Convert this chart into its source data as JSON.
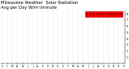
{
  "title": "Milwaukee Weather  Solar Radiation",
  "subtitle": "Avg per Day W/m²/minute",
  "title_fontsize": 3.8,
  "bg_color": "#ffffff",
  "line1_color": "#ff0000",
  "line2_color": "#000000",
  "yticks": [
    1,
    2,
    3,
    4,
    5,
    6,
    7,
    8
  ],
  "ylim": [
    0,
    8.5
  ],
  "num_points": 730,
  "grid_color": "#aaaaaa",
  "legend_box_color": "#ff0000",
  "legend_dot_color": "#cc0000"
}
